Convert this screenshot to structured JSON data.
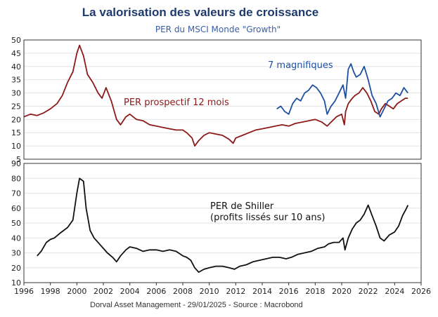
{
  "header": {
    "title": "La valorisation des valeurs de croissance",
    "subtitle": "PER du MSCI Monde \"Growth\""
  },
  "footer": {
    "source_line": "Dorval Asset Management      -   29/01/2025   -   Source : Macrobond"
  },
  "colors": {
    "forward_pe": "#8b1a1a",
    "magnificent7": "#1f4fa0",
    "shiller": "#111111",
    "title": "#1f3a6e",
    "subtitle": "#3a5ea8"
  },
  "chart_data": [
    {
      "type": "line",
      "title": "PER du MSCI Monde \"Growth\"",
      "xlim": [
        1996,
        2026
      ],
      "ylim": [
        5,
        50
      ],
      "yticks": [
        5,
        10,
        15,
        20,
        25,
        30,
        35,
        40,
        45,
        50
      ],
      "grid": true,
      "series": [
        {
          "name": "PER prospectif 12 mois",
          "label": "PER prospectif 12 mois",
          "color": "#8b1a1a",
          "x": [
            1996.0,
            1996.5,
            1997.0,
            1997.5,
            1998.0,
            1998.5,
            1998.9,
            1999.3,
            1999.7,
            2000.0,
            2000.2,
            2000.5,
            2000.8,
            2001.2,
            2001.6,
            2001.9,
            2002.2,
            2002.6,
            2003.0,
            2003.3,
            2003.7,
            2004.0,
            2004.5,
            2005.0,
            2005.5,
            2006.0,
            2006.5,
            2007.0,
            2007.5,
            2008.0,
            2008.3,
            2008.7,
            2008.9,
            2009.2,
            2009.6,
            2010.0,
            2010.5,
            2011.0,
            2011.5,
            2011.8,
            2012.0,
            2012.5,
            2013.0,
            2013.5,
            2014.0,
            2014.5,
            2015.0,
            2015.5,
            2016.0,
            2016.5,
            2017.0,
            2017.5,
            2018.0,
            2018.5,
            2018.9,
            2019.2,
            2019.6,
            2020.0,
            2020.2,
            2020.3,
            2020.5,
            2020.8,
            2021.0,
            2021.3,
            2021.6,
            2021.9,
            2022.2,
            2022.5,
            2022.8,
            2023.0,
            2023.3,
            2023.6,
            2023.9,
            2024.2,
            2024.5,
            2024.8,
            2025.0
          ],
          "values": [
            21,
            22,
            21.5,
            22.5,
            24,
            26,
            29,
            34,
            38,
            45,
            48,
            44,
            37,
            34,
            30,
            28,
            32,
            27,
            20,
            18,
            21,
            22,
            20,
            19.5,
            18,
            17.5,
            17,
            16.5,
            16,
            16,
            15,
            13,
            10,
            12,
            14,
            15,
            14.5,
            14,
            12.5,
            11,
            13,
            14,
            15,
            16,
            16.5,
            17,
            17.5,
            18,
            17.5,
            18.5,
            19,
            19.5,
            20,
            19,
            17.5,
            19,
            21,
            22,
            18,
            23,
            26,
            28,
            29,
            30,
            32,
            30,
            27,
            23,
            22,
            24,
            26,
            25,
            24,
            26,
            27,
            28,
            28
          ]
        },
        {
          "name": "7 magnifiques",
          "label": "7 magnifiques",
          "color": "#1f4fa0",
          "x": [
            2015.1,
            2015.4,
            2015.7,
            2016.0,
            2016.3,
            2016.6,
            2016.9,
            2017.2,
            2017.5,
            2017.8,
            2018.1,
            2018.4,
            2018.7,
            2018.9,
            2019.2,
            2019.5,
            2019.8,
            2020.1,
            2020.3,
            2020.5,
            2020.7,
            2020.9,
            2021.1,
            2021.4,
            2021.7,
            2022.0,
            2022.3,
            2022.6,
            2022.9,
            2023.2,
            2023.5,
            2023.8,
            2024.1,
            2024.4,
            2024.7,
            2025.0
          ],
          "values": [
            24,
            25,
            23,
            22,
            26,
            28,
            27,
            30,
            31,
            33,
            32,
            30,
            27,
            22,
            25,
            27,
            30,
            33,
            28,
            39,
            41,
            38,
            36,
            37,
            40,
            35,
            29,
            26,
            21,
            24,
            27,
            28,
            30,
            29,
            32,
            30
          ]
        }
      ],
      "annotations": [
        "PER prospectif 12 mois",
        "7 magnifiques"
      ]
    },
    {
      "type": "line",
      "title": "PER de Shiller",
      "xlabel": "",
      "xlim": [
        1996,
        2026
      ],
      "xticks": [
        1996,
        1998,
        2000,
        2002,
        2004,
        2006,
        2008,
        2010,
        2012,
        2014,
        2016,
        2018,
        2020,
        2022,
        2024,
        2026
      ],
      "ylim": [
        10,
        90
      ],
      "yticks": [
        10,
        20,
        30,
        40,
        50,
        60,
        70,
        80,
        90
      ],
      "grid": true,
      "series": [
        {
          "name": "PER de Shiller (profits lissés sur 10 ans)",
          "label": "PER de Shiller\n(profits lissés sur 10 ans)",
          "color": "#111111",
          "x": [
            1997.0,
            1997.3,
            1997.7,
            1998.0,
            1998.3,
            1998.7,
            1999.0,
            1999.3,
            1999.7,
            2000.0,
            2000.2,
            2000.5,
            2000.7,
            2001.0,
            2001.3,
            2001.7,
            2002.0,
            2002.3,
            2002.7,
            2003.0,
            2003.3,
            2003.7,
            2004.0,
            2004.5,
            2005.0,
            2005.5,
            2006.0,
            2006.5,
            2007.0,
            2007.5,
            2008.0,
            2008.3,
            2008.6,
            2008.9,
            2009.2,
            2009.6,
            2010.0,
            2010.5,
            2011.0,
            2011.5,
            2011.9,
            2012.3,
            2012.8,
            2013.3,
            2013.8,
            2014.3,
            2014.8,
            2015.3,
            2015.8,
            2016.2,
            2016.7,
            2017.2,
            2017.7,
            2018.2,
            2018.7,
            2019.0,
            2019.4,
            2019.8,
            2020.1,
            2020.25,
            2020.5,
            2020.8,
            2021.1,
            2021.4,
            2021.7,
            2022.0,
            2022.3,
            2022.6,
            2022.9,
            2023.2,
            2023.6,
            2024.0,
            2024.3,
            2024.6,
            2024.9,
            2025.0
          ],
          "values": [
            28,
            31,
            37,
            39,
            40,
            43,
            45,
            47,
            52,
            70,
            80,
            78,
            60,
            45,
            40,
            36,
            33,
            30,
            27,
            24,
            28,
            32,
            34,
            33,
            31,
            32,
            32,
            31,
            32,
            31,
            28,
            27,
            25,
            20,
            17,
            19,
            20,
            21,
            21,
            20,
            19,
            21,
            22,
            24,
            25,
            26,
            27,
            27,
            26,
            27,
            29,
            30,
            31,
            33,
            34,
            36,
            37,
            37,
            40,
            32,
            40,
            46,
            50,
            52,
            56,
            62,
            55,
            48,
            40,
            38,
            42,
            44,
            48,
            55,
            60,
            62
          ]
        }
      ],
      "annotations": [
        "PER de Shiller",
        "(profits lissés sur 10 ans)"
      ]
    }
  ],
  "labels": {
    "forward": "PER prospectif 12 mois",
    "mag7": "7 magnifiques",
    "shiller_line1": "PER de Shiller",
    "shiller_line2": "(profits lissés sur 10 ans)"
  }
}
